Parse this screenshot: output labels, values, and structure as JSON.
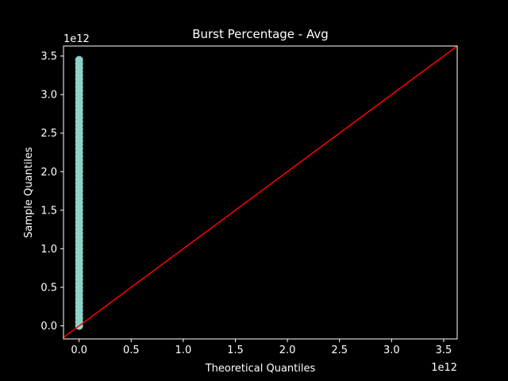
{
  "chart_data": {
    "type": "scatter",
    "title": "Burst Percentage - Avg",
    "xlabel": "Theoretical Quantiles",
    "ylabel": "Sample Quantiles",
    "x_offset_label": "1e12",
    "y_offset_label": "1e12",
    "xlim": [
      -0.15,
      3.63
    ],
    "ylim": [
      -0.17,
      3.63
    ],
    "x_ticks": [
      0.0,
      0.5,
      1.0,
      1.5,
      2.0,
      2.5,
      3.0,
      3.5
    ],
    "x_tick_labels": [
      "0.0",
      "0.5",
      "1.0",
      "1.5",
      "2.0",
      "2.5",
      "3.0",
      "3.5"
    ],
    "y_ticks": [
      0.0,
      0.5,
      1.0,
      1.5,
      2.0,
      2.5,
      3.0,
      3.5
    ],
    "y_tick_labels": [
      "0.0",
      "0.5",
      "1.0",
      "1.5",
      "2.0",
      "2.5",
      "3.0",
      "3.5"
    ],
    "grid": false,
    "series": [
      {
        "kind": "points",
        "color": "#8dd3c7",
        "x": 0.0,
        "y_values": [
          0.0,
          0.05,
          0.1,
          0.15,
          0.2,
          0.25,
          0.3,
          0.35,
          0.4,
          0.45,
          0.5,
          0.55,
          0.6,
          0.65,
          0.7,
          0.75,
          0.8,
          0.85,
          0.9,
          0.95,
          1.0,
          1.05,
          1.1,
          1.15,
          1.2,
          1.25,
          1.3,
          1.35,
          1.4,
          1.45,
          1.5,
          1.55,
          1.6,
          1.65,
          1.7,
          1.75,
          1.8,
          1.85,
          1.9,
          1.95,
          2.0,
          2.05,
          2.1,
          2.15,
          2.2,
          2.25,
          2.3,
          2.35,
          2.4,
          2.45,
          2.5,
          2.55,
          2.6,
          2.65,
          2.7,
          2.75,
          2.8,
          2.85,
          2.9,
          2.95,
          3.0,
          3.05,
          3.1,
          3.15,
          3.2,
          3.25,
          3.3,
          3.35,
          3.4,
          3.45
        ]
      },
      {
        "kind": "reference-line",
        "color": "#ff0000",
        "x": [
          -0.15,
          3.63
        ],
        "y": [
          -0.15,
          3.63
        ]
      }
    ]
  }
}
